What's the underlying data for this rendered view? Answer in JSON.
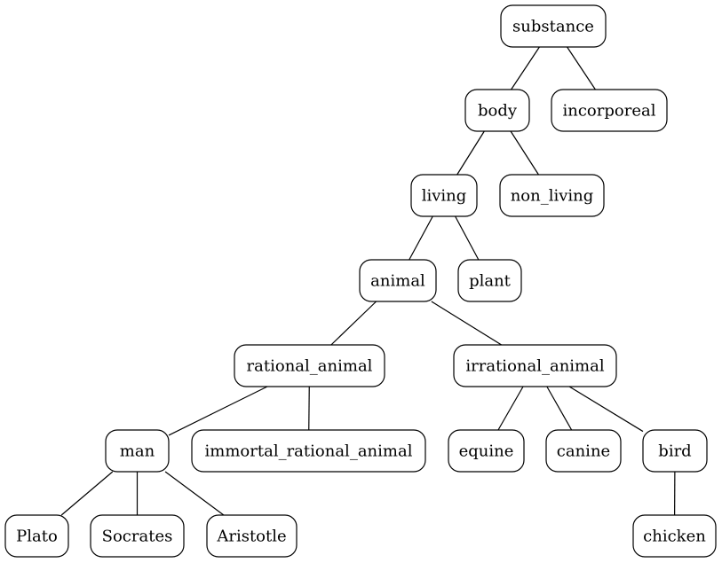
{
  "diagram": {
    "type": "tree",
    "nodes": [
      {
        "id": "substance",
        "label": "substance"
      },
      {
        "id": "body",
        "label": "body"
      },
      {
        "id": "incorporeal",
        "label": "incorporeal"
      },
      {
        "id": "living",
        "label": "living"
      },
      {
        "id": "non_living",
        "label": "non_living"
      },
      {
        "id": "animal",
        "label": "animal"
      },
      {
        "id": "plant",
        "label": "plant"
      },
      {
        "id": "rational_animal",
        "label": "rational_animal"
      },
      {
        "id": "irrational_animal",
        "label": "irrational_animal"
      },
      {
        "id": "man",
        "label": "man"
      },
      {
        "id": "immortal_rational_animal",
        "label": "immortal_rational_animal"
      },
      {
        "id": "equine",
        "label": "equine"
      },
      {
        "id": "canine",
        "label": "canine"
      },
      {
        "id": "bird",
        "label": "bird"
      },
      {
        "id": "Plato",
        "label": "Plato"
      },
      {
        "id": "Socrates",
        "label": "Socrates"
      },
      {
        "id": "Aristotle",
        "label": "Aristotle"
      },
      {
        "id": "chicken",
        "label": "chicken"
      }
    ],
    "edges": [
      {
        "from": "substance",
        "to": "body"
      },
      {
        "from": "substance",
        "to": "incorporeal"
      },
      {
        "from": "body",
        "to": "living"
      },
      {
        "from": "body",
        "to": "non_living"
      },
      {
        "from": "living",
        "to": "animal"
      },
      {
        "from": "living",
        "to": "plant"
      },
      {
        "from": "animal",
        "to": "rational_animal"
      },
      {
        "from": "animal",
        "to": "irrational_animal"
      },
      {
        "from": "rational_animal",
        "to": "man"
      },
      {
        "from": "rational_animal",
        "to": "immortal_rational_animal"
      },
      {
        "from": "irrational_animal",
        "to": "equine"
      },
      {
        "from": "irrational_animal",
        "to": "canine"
      },
      {
        "from": "irrational_animal",
        "to": "bird"
      },
      {
        "from": "man",
        "to": "Plato"
      },
      {
        "from": "man",
        "to": "Socrates"
      },
      {
        "from": "man",
        "to": "Aristotle"
      },
      {
        "from": "bird",
        "to": "chicken"
      }
    ]
  }
}
